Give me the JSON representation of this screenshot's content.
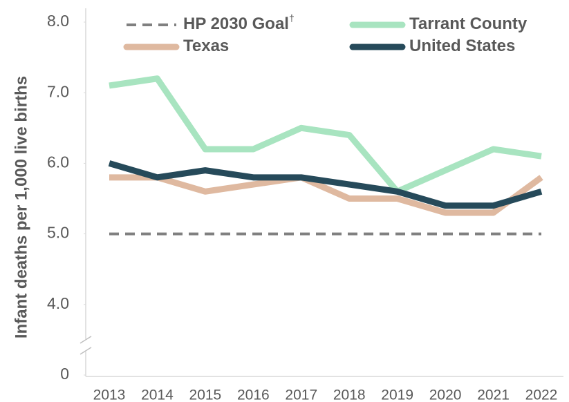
{
  "chart_data": {
    "type": "line",
    "y_label": "Infant deaths per 1,000 live births",
    "categories": [
      "2013",
      "2014",
      "2015",
      "2016",
      "2017",
      "2018",
      "2019",
      "2020",
      "2021",
      "2022"
    ],
    "series": [
      {
        "name": "HP 2030 Goal",
        "name_mark": "†",
        "color": "#808080",
        "dashed": true,
        "values": [
          5.0,
          5.0,
          5.0,
          5.0,
          5.0,
          5.0,
          5.0,
          5.0,
          5.0,
          5.0
        ]
      },
      {
        "name": "Tarrant County",
        "color": "#a8e4c0",
        "values": [
          7.1,
          7.2,
          6.2,
          6.2,
          6.5,
          6.4,
          5.6,
          5.9,
          6.2,
          6.1
        ]
      },
      {
        "name": "Texas",
        "color": "#dfb9a0",
        "values": [
          5.8,
          5.8,
          5.6,
          5.7,
          5.8,
          5.5,
          5.5,
          5.3,
          5.3,
          5.8
        ]
      },
      {
        "name": "United States",
        "color": "#264a5a",
        "values": [
          6.0,
          5.8,
          5.9,
          5.8,
          5.8,
          5.7,
          5.6,
          5.4,
          5.4,
          5.6
        ]
      }
    ],
    "ylim": [
      0,
      8
    ],
    "yticks": [
      0,
      {
        "value": 4,
        "label": "4.0"
      },
      {
        "value": 5,
        "label": "5.0"
      },
      {
        "value": 6,
        "label": "6.0"
      },
      {
        "value": 7,
        "label": "7.0"
      },
      {
        "value": 8,
        "label": "8.0"
      }
    ],
    "axis_break": true,
    "grid": false
  }
}
